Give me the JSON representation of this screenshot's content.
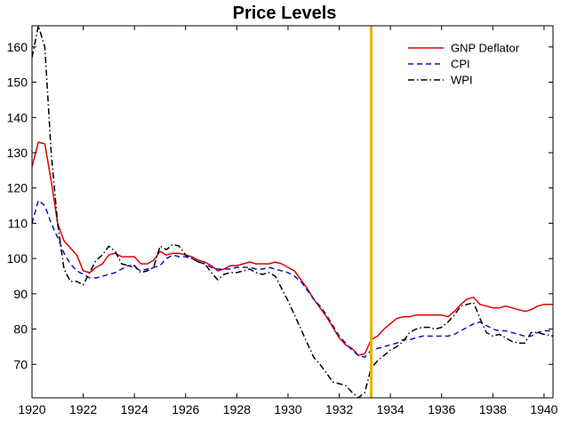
{
  "chart_data": {
    "type": "line",
    "title": "Price Levels",
    "xlabel": "",
    "ylabel": "",
    "xlim": [
      1920,
      1940.35
    ],
    "ylim": [
      60.5,
      166
    ],
    "x_ticks": [
      1920,
      1922,
      1924,
      1926,
      1928,
      1930,
      1932,
      1934,
      1936,
      1938,
      1940
    ],
    "y_ticks": [
      70,
      80,
      90,
      100,
      110,
      120,
      130,
      140,
      150,
      160
    ],
    "grid": false,
    "legend_position": "top-right",
    "vline": {
      "x": 1933.25,
      "color": "#e8b200"
    },
    "series": [
      {
        "name": "GNP Deflator",
        "color": "#e00000",
        "style": "solid",
        "x": [
          1920,
          1920.25,
          1920.5,
          1920.75,
          1921,
          1921.25,
          1921.5,
          1921.75,
          1922,
          1922.25,
          1922.5,
          1922.75,
          1923,
          1923.25,
          1923.5,
          1923.75,
          1924,
          1924.25,
          1924.5,
          1924.75,
          1925,
          1925.25,
          1925.5,
          1925.75,
          1926,
          1926.25,
          1926.5,
          1926.75,
          1927,
          1927.25,
          1927.5,
          1927.75,
          1928,
          1928.25,
          1928.5,
          1928.75,
          1929,
          1929.25,
          1929.5,
          1929.75,
          1930,
          1930.25,
          1930.5,
          1930.75,
          1931,
          1931.25,
          1931.5,
          1931.75,
          1932,
          1932.25,
          1932.5,
          1932.75,
          1933,
          1933.25,
          1933.5,
          1933.75,
          1934,
          1934.25,
          1934.5,
          1934.75,
          1935,
          1935.25,
          1935.5,
          1935.75,
          1936,
          1936.25,
          1936.5,
          1936.75,
          1937,
          1937.25,
          1937.5,
          1937.75,
          1938,
          1938.25,
          1938.5,
          1938.75,
          1939,
          1939.25,
          1939.5,
          1939.75,
          1940,
          1940.35
        ],
        "values": [
          126,
          133,
          132.5,
          122,
          110,
          105,
          103,
          101,
          96.5,
          96,
          97.5,
          98.5,
          101,
          101.5,
          100.5,
          100.5,
          100.5,
          98.5,
          98.5,
          99.5,
          102,
          101,
          101.5,
          101.5,
          101,
          100.5,
          99.5,
          99,
          98,
          96.5,
          97,
          98,
          98,
          98.5,
          99,
          98.5,
          98.5,
          98.5,
          99,
          98.5,
          97.5,
          96.5,
          94,
          91.5,
          88.5,
          86,
          83.5,
          80.5,
          77.5,
          75.5,
          74.5,
          72.5,
          73,
          77,
          78,
          80,
          81.5,
          83,
          83.5,
          83.5,
          84,
          84,
          84,
          84,
          84,
          83.5,
          85,
          87,
          88.5,
          89,
          87,
          86.5,
          86,
          86,
          86.5,
          86,
          85.5,
          85,
          85.5,
          86.5,
          87,
          87
        ]
      },
      {
        "name": "CPI",
        "color": "#1010c8",
        "style": "dashed",
        "x": [
          1920,
          1920.25,
          1920.5,
          1920.75,
          1921,
          1921.25,
          1921.5,
          1921.75,
          1922,
          1922.25,
          1922.5,
          1922.75,
          1923,
          1923.25,
          1923.5,
          1923.75,
          1924,
          1924.25,
          1924.5,
          1924.75,
          1925,
          1925.25,
          1925.5,
          1925.75,
          1926,
          1926.25,
          1926.5,
          1926.75,
          1927,
          1927.25,
          1927.5,
          1927.75,
          1928,
          1928.25,
          1928.5,
          1928.75,
          1929,
          1929.25,
          1929.5,
          1929.75,
          1930,
          1930.25,
          1930.5,
          1930.75,
          1931,
          1931.25,
          1931.5,
          1931.75,
          1932,
          1932.25,
          1932.5,
          1932.75,
          1933,
          1933.25,
          1933.5,
          1933.75,
          1934,
          1934.25,
          1934.5,
          1934.75,
          1935,
          1935.25,
          1935.5,
          1935.75,
          1936,
          1936.25,
          1936.5,
          1936.75,
          1937,
          1937.25,
          1937.5,
          1937.75,
          1938,
          1938.25,
          1938.5,
          1938.75,
          1939,
          1939.25,
          1939.5,
          1939.75,
          1940,
          1940.35
        ],
        "values": [
          110,
          116.5,
          115,
          110,
          106,
          101.5,
          98.5,
          96.5,
          95.5,
          94.5,
          94.5,
          95,
          95.5,
          96,
          97,
          98,
          97.5,
          96.5,
          97,
          97.5,
          98,
          100,
          101,
          100.5,
          100.5,
          100,
          99,
          98.5,
          97.5,
          97,
          97,
          97,
          97.5,
          97.5,
          97.5,
          97,
          97,
          97.5,
          97,
          96.5,
          96,
          95,
          93.5,
          91,
          88.5,
          86.5,
          84,
          81,
          78,
          76,
          74,
          72.5,
          72,
          74,
          74.5,
          75,
          75.5,
          76,
          77,
          77,
          77.5,
          78,
          78,
          78,
          78,
          78,
          78.5,
          79.5,
          80.5,
          81.5,
          82,
          81,
          80,
          79.5,
          79.5,
          79,
          78.5,
          78,
          78,
          79,
          79.5,
          79.5
        ]
      },
      {
        "name": "WPI",
        "color": "#000000",
        "style": "dashdot",
        "x": [
          1920,
          1920.25,
          1920.5,
          1920.75,
          1921,
          1921.25,
          1921.5,
          1921.75,
          1922,
          1922.25,
          1922.5,
          1922.75,
          1923,
          1923.25,
          1923.5,
          1923.75,
          1924,
          1924.25,
          1924.5,
          1924.75,
          1925,
          1925.25,
          1925.5,
          1925.75,
          1926,
          1926.25,
          1926.5,
          1926.75,
          1927,
          1927.25,
          1927.5,
          1927.75,
          1928,
          1928.25,
          1928.5,
          1928.75,
          1929,
          1929.25,
          1929.5,
          1929.75,
          1930,
          1930.25,
          1930.5,
          1930.75,
          1931,
          1931.25,
          1931.5,
          1931.75,
          1932,
          1932.25,
          1932.5,
          1932.75,
          1933,
          1933.25,
          1933.5,
          1933.75,
          1934,
          1934.25,
          1934.5,
          1934.75,
          1935,
          1935.25,
          1935.5,
          1935.75,
          1936,
          1936.25,
          1936.5,
          1936.75,
          1937,
          1937.25,
          1937.5,
          1937.75,
          1938,
          1938.25,
          1938.5,
          1938.75,
          1939,
          1939.25,
          1939.5,
          1939.75,
          1940,
          1940.35
        ],
        "values": [
          157,
          166,
          160,
          130,
          110,
          97,
          93.5,
          93.5,
          92.5,
          96,
          99.5,
          101,
          103.5,
          102,
          98.5,
          98,
          98,
          96,
          96.5,
          97.5,
          103.5,
          102.5,
          104,
          103.5,
          101,
          100,
          99,
          98.5,
          96,
          94,
          95.5,
          96,
          96,
          96.5,
          97,
          96,
          95.5,
          96,
          95,
          91.5,
          88,
          84,
          80,
          76,
          72,
          70,
          67.5,
          65,
          64.5,
          64,
          62,
          60.5,
          62,
          69,
          71,
          72.5,
          74,
          75,
          76.5,
          79,
          80,
          80.5,
          80.5,
          80,
          80.5,
          82,
          84,
          86.5,
          87,
          87.5,
          83,
          79,
          78,
          78.5,
          77.5,
          76.5,
          76,
          76,
          79,
          79,
          78.5,
          78
        ]
      }
    ]
  }
}
